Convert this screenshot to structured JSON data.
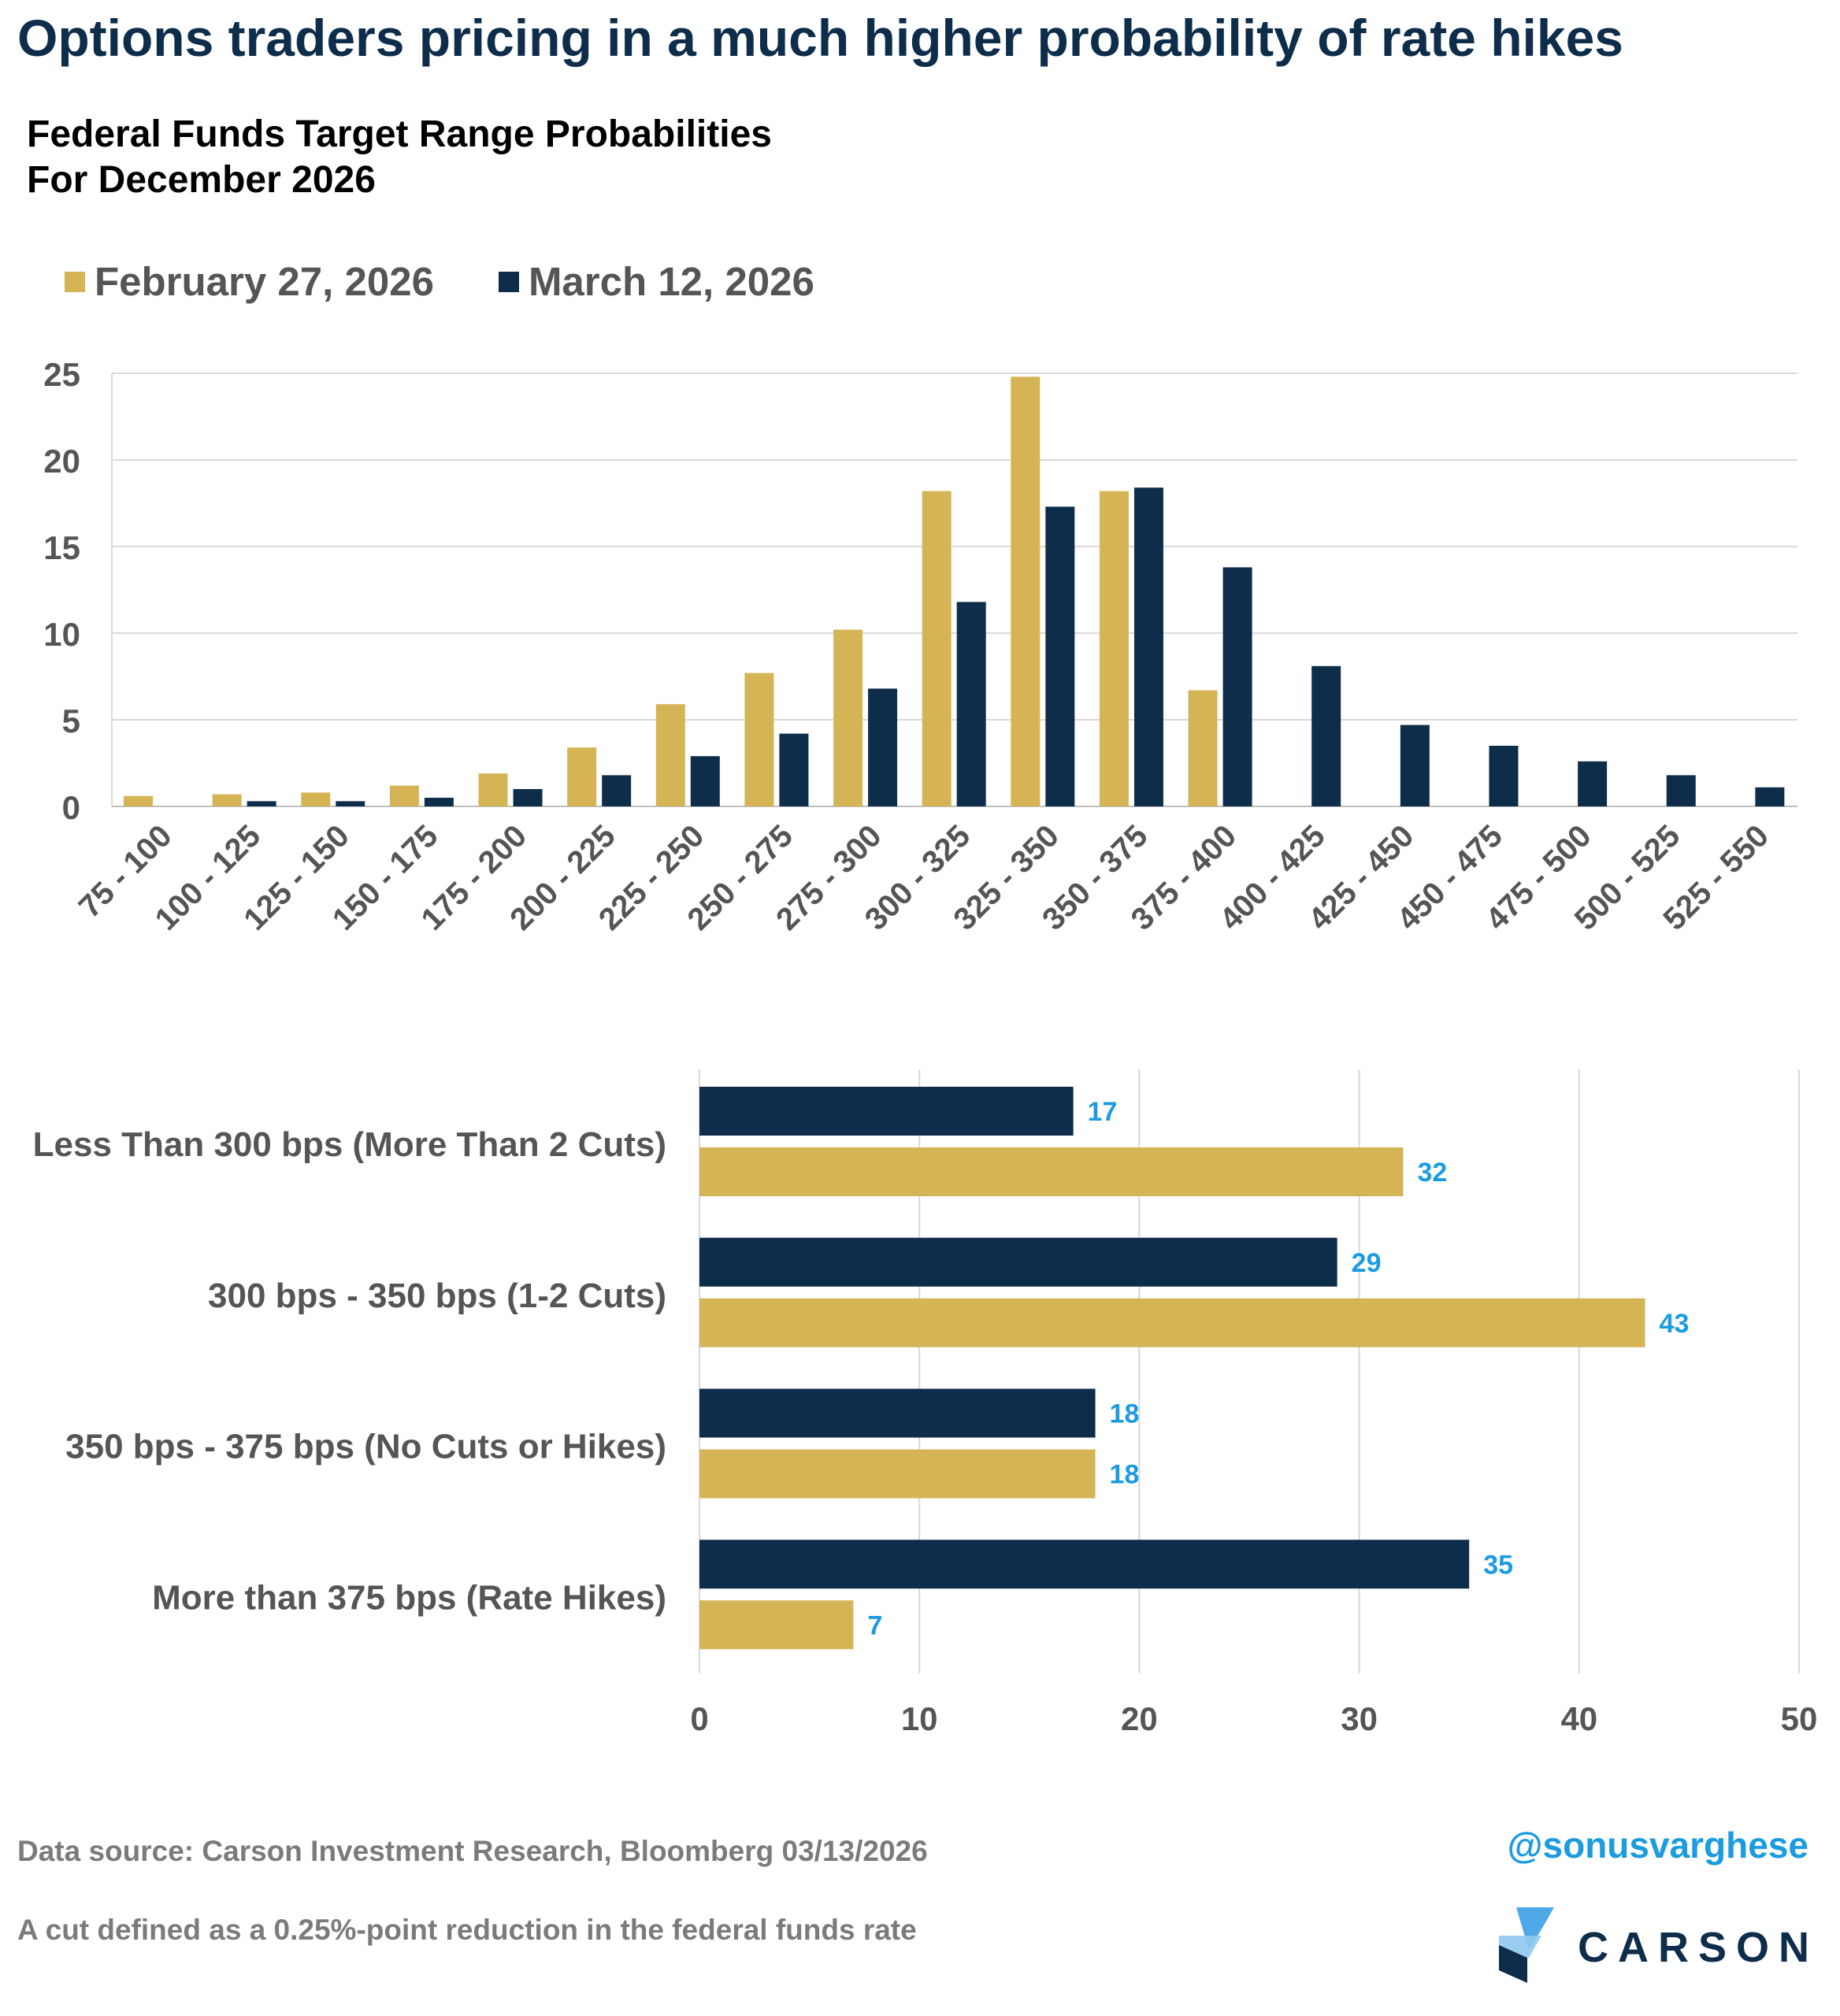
{
  "title": "Options traders pricing in a much higher probability of rate hikes",
  "subtitle_line1": "Federal Funds Target Range Probabilities",
  "subtitle_line2": "For December 2026",
  "colors": {
    "feb": "#d4b455",
    "mar": "#0e2d4b",
    "label": "#1b9be0",
    "axis_text": "#555555"
  },
  "chart_data": [
    {
      "type": "bar",
      "title": "Federal Funds Target Range Probabilities For December 2026",
      "xlabel": "",
      "ylabel": "",
      "categories": [
        "75 - 100",
        "100 - 125",
        "125 - 150",
        "150 - 175",
        "175 - 200",
        "200 - 225",
        "225 - 250",
        "250 - 275",
        "275 - 300",
        "300 - 325",
        "325 - 350",
        "350 - 375",
        "375 - 400",
        "400 - 425",
        "425 - 450",
        "450 - 475",
        "475 - 500",
        "500 - 525",
        "525 - 550"
      ],
      "series": [
        {
          "name": "February 27, 2026",
          "values": [
            0.6,
            0.7,
            0.8,
            1.2,
            1.9,
            3.4,
            5.9,
            7.7,
            10.2,
            18.2,
            24.8,
            18.2,
            6.7,
            0,
            0,
            0,
            0,
            0,
            0
          ]
        },
        {
          "name": "March 12, 2026",
          "values": [
            0,
            0.3,
            0.3,
            0.5,
            1.0,
            1.8,
            2.9,
            4.2,
            6.8,
            11.8,
            17.3,
            18.4,
            13.8,
            8.1,
            4.7,
            3.5,
            2.6,
            1.8,
            1.1
          ]
        }
      ],
      "ylim": [
        0,
        25
      ],
      "yticks": [
        0,
        5,
        10,
        15,
        20,
        25
      ],
      "grid": true,
      "legend": "top-left"
    },
    {
      "type": "bar",
      "orientation": "horizontal",
      "title": "",
      "categories": [
        "Less Than 300 bps (More Than 2 Cuts)",
        "300 bps - 350 bps (1-2 Cuts)",
        "350 bps - 375 bps (No Cuts or Hikes)",
        "More than 375 bps (Rate Hikes)"
      ],
      "series": [
        {
          "name": "March 12, 2026",
          "values": [
            17,
            29,
            18,
            35
          ]
        },
        {
          "name": "February 27, 2026",
          "values": [
            32,
            43,
            18,
            7
          ]
        }
      ],
      "xlim": [
        0,
        50
      ],
      "xticks": [
        0,
        10,
        20,
        30,
        40,
        50
      ],
      "grid": true
    }
  ],
  "footer": {
    "source": "Data source: Carson Investment Research, Bloomberg   03/13/2026",
    "note": "A cut defined as a 0.25%-point reduction in the federal funds rate",
    "handle": "@sonusvarghese",
    "logo_text": "CARSON"
  }
}
